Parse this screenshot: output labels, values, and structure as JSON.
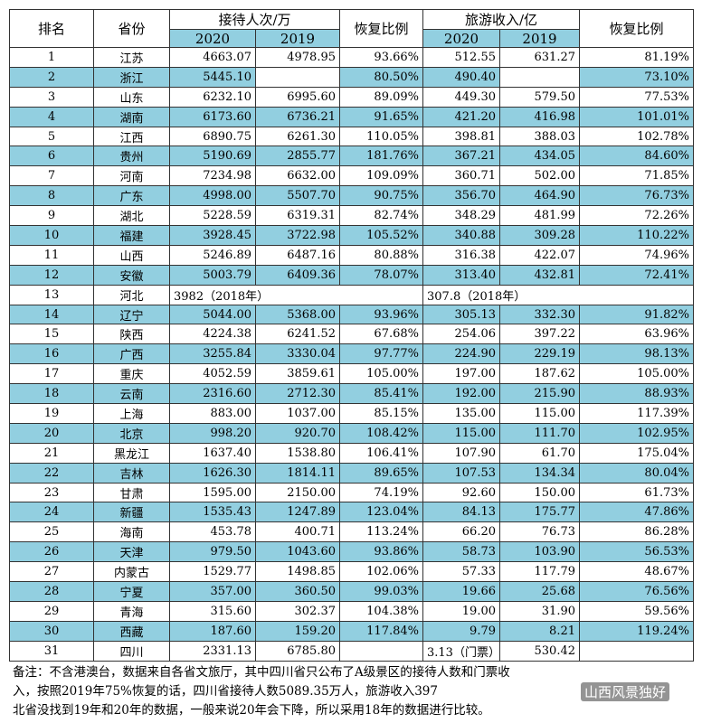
{
  "table": {
    "header": {
      "rank": "排名",
      "province": "省份",
      "visitors": "接待人次/万",
      "visitor_ratio": "恢复比例",
      "revenue": "旅游收入/亿",
      "revenue_ratio": "恢复比例",
      "years": [
        "2020",
        "2019",
        "2020",
        "2019"
      ]
    },
    "rows": [
      [
        "1",
        "江苏",
        "4663.07",
        "4978.95",
        "93.66%",
        "512.55",
        "631.27",
        "81.19%"
      ],
      [
        "2",
        "浙江",
        "5445.10",
        null,
        "80.50%",
        "490.40",
        null,
        "73.10%"
      ],
      [
        "3",
        "山东",
        "6232.10",
        "6995.60",
        "89.09%",
        "449.30",
        "579.50",
        "77.53%"
      ],
      [
        "4",
        "湖南",
        "6173.60",
        "6736.21",
        "91.65%",
        "421.20",
        "416.98",
        "101.01%"
      ],
      [
        "5",
        "江西",
        "6890.75",
        "6261.30",
        "110.05%",
        "398.81",
        "388.03",
        "102.78%"
      ],
      [
        "6",
        "贵州",
        "5190.69",
        "2855.77",
        "181.76%",
        "367.21",
        "434.05",
        "84.60%"
      ],
      [
        "7",
        "河南",
        "7234.98",
        "6632.00",
        "109.09%",
        "360.71",
        "502.00",
        "71.85%"
      ],
      [
        "8",
        "广东",
        "4998.00",
        "5507.70",
        "90.75%",
        "356.70",
        "464.90",
        "76.73%"
      ],
      [
        "9",
        "湖北",
        "5228.59",
        "6319.31",
        "82.74%",
        "348.29",
        "481.99",
        "72.26%"
      ],
      [
        "10",
        "福建",
        "3928.45",
        "3722.98",
        "105.52%",
        "340.88",
        "309.28",
        "110.22%"
      ],
      [
        "11",
        "山西",
        "5246.89",
        "6487.16",
        "80.88%",
        "316.38",
        "422.07",
        "74.96%"
      ],
      [
        "12",
        "安徽",
        "5003.79",
        "6409.36",
        "78.07%",
        "313.40",
        "432.81",
        "72.41%"
      ],
      [
        "13",
        "河北",
        "3982（2018年）",
        "307.8（2018年）"
      ],
      [
        "14",
        "辽宁",
        "5044.00",
        "5368.00",
        "93.96%",
        "305.13",
        "332.30",
        "91.82%"
      ],
      [
        "15",
        "陕西",
        "4224.38",
        "6241.52",
        "67.68%",
        "254.06",
        "397.22",
        "63.96%"
      ],
      [
        "16",
        "广西",
        "3255.84",
        "3330.04",
        "97.77%",
        "224.90",
        "229.19",
        "98.13%"
      ],
      [
        "17",
        "重庆",
        "4052.59",
        "3859.61",
        "105.00%",
        "197.00",
        "187.62",
        "105.00%"
      ],
      [
        "18",
        "云南",
        "2316.60",
        "2712.30",
        "85.41%",
        "192.00",
        "215.90",
        "88.93%"
      ],
      [
        "19",
        "上海",
        "883.00",
        "1037.00",
        "85.15%",
        "135.00",
        "115.00",
        "117.39%"
      ],
      [
        "20",
        "北京",
        "998.20",
        "920.70",
        "108.42%",
        "115.00",
        "111.70",
        "102.95%"
      ],
      [
        "21",
        "黑龙江",
        "1637.40",
        "1538.80",
        "106.41%",
        "107.90",
        "61.70",
        "175.04%"
      ],
      [
        "22",
        "吉林",
        "1626.30",
        "1814.11",
        "89.65%",
        "107.53",
        "134.34",
        "80.04%"
      ],
      [
        "23",
        "甘肃",
        "1595.00",
        "2150.00",
        "74.19%",
        "92.60",
        "150.00",
        "61.73%"
      ],
      [
        "24",
        "新疆",
        "1535.43",
        "1247.89",
        "123.04%",
        "84.13",
        "175.77",
        "47.86%"
      ],
      [
        "25",
        "海南",
        "453.78",
        "400.71",
        "113.24%",
        "66.20",
        "76.73",
        "86.28%"
      ],
      [
        "26",
        "天津",
        "979.50",
        "1043.60",
        "93.86%",
        "58.73",
        "103.90",
        "56.53%"
      ],
      [
        "27",
        "内蒙古",
        "1529.77",
        "1498.85",
        "102.06%",
        "57.33",
        "117.79",
        "48.67%"
      ],
      [
        "28",
        "宁夏",
        "357.00",
        "360.50",
        "99.03%",
        "19.66",
        "25.68",
        "76.56%"
      ],
      [
        "29",
        "青海",
        "315.60",
        "302.37",
        "104.38%",
        "19.00",
        "31.90",
        "59.56%"
      ],
      [
        "30",
        "西藏",
        "187.60",
        "159.20",
        "117.84%",
        "9.79",
        "8.21",
        "119.24%"
      ],
      [
        "31",
        "四川",
        "2331.13",
        "6785.80",
        null,
        "3.13（门票）",
        "530.42",
        null
      ]
    ]
  },
  "note": {
    "lines": [
      "备注：不含港澳台，数据来自各省文旅厅，其中四川省只公布了A级景区的接待人数和门票收",
      "入，按照2019年75%恢复的话，四川省接待人数5089.35万人，旅游收入397",
      "北省没找到19年和20年的数据，一般来说20年会下降，所以采用18年的数据进行比较。"
    ],
    "watermark": "山西风景独好"
  }
}
